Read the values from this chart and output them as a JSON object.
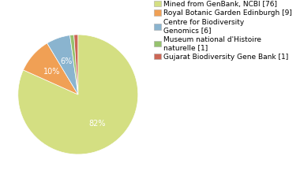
{
  "labels": [
    "Mined from GenBank, NCBI [76]",
    "Royal Botanic Garden Edinburgh [9]",
    "Centre for Biodiversity\nGenomics [6]",
    "Museum national d'Histoire\nnaturelle [1]",
    "Gujarat Biodiversity Gene Bank [1]"
  ],
  "values": [
    76,
    9,
    6,
    1,
    1
  ],
  "colors": [
    "#d4df82",
    "#f0a055",
    "#8ab4cf",
    "#96c26e",
    "#cc6655"
  ],
  "background_color": "#ffffff",
  "fontsize": 7.0,
  "legend_fontsize": 6.5
}
